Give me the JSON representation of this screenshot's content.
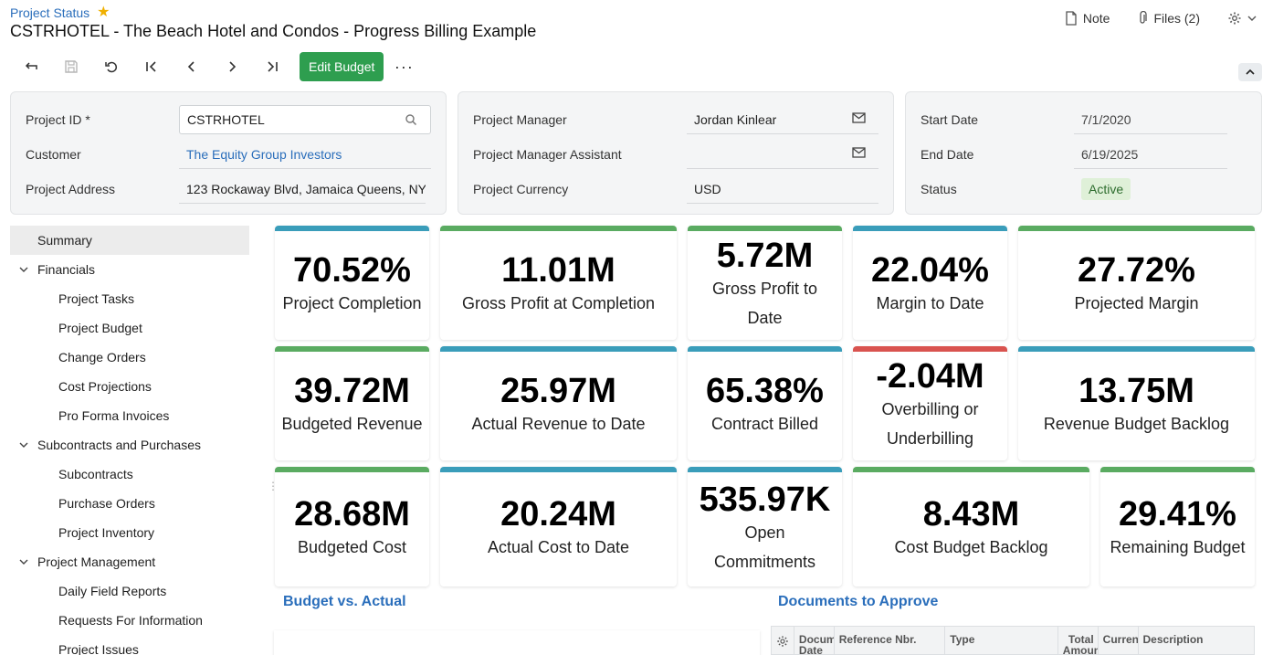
{
  "breadcrumb": "Project Status",
  "title": "CSTRHOTEL - The Beach Hotel and Condos - Progress Billing Example",
  "top_actions": {
    "note": "Note",
    "files": "Files (2)"
  },
  "toolbar": {
    "edit_budget": "Edit Budget",
    "more": "···"
  },
  "summary": {
    "project_id_label": "Project ID *",
    "project_id_value": "CSTRHOTEL",
    "customer_label": "Customer",
    "customer_value": "The Equity Group Investors",
    "address_label": "Project Address",
    "address_value": "123 Rockaway Blvd, Jamaica Queens, NY",
    "pm_label": "Project Manager",
    "pm_value": "Jordan Kinlear",
    "pma_label": "Project Manager Assistant",
    "pma_value": "",
    "currency_label": "Project Currency",
    "currency_value": "USD",
    "start_label": "Start Date",
    "start_value": "7/1/2020",
    "end_label": "End Date",
    "end_value": "6/19/2025",
    "status_label": "Status",
    "status_value": "Active"
  },
  "nav": {
    "summary": "Summary",
    "financials": "Financials",
    "project_tasks": "Project Tasks",
    "project_budget": "Project Budget",
    "change_orders": "Change Orders",
    "cost_projections": "Cost Projections",
    "pro_forma": "Pro Forma Invoices",
    "subcontracts_purchases": "Subcontracts and Purchases",
    "subcontracts": "Subcontracts",
    "purchase_orders": "Purchase Orders",
    "project_inventory": "Project Inventory",
    "project_management": "Project Management",
    "daily_field_reports": "Daily Field Reports",
    "rfi": "Requests For Information",
    "project_issues": "Project Issues"
  },
  "kpis": {
    "completion": {
      "value": "70.52%",
      "caption": "Project Completion"
    },
    "gross_profit_completion": {
      "value": "11.01M",
      "caption": "Gross Profit at Completion"
    },
    "gross_profit_date": {
      "value": "5.72M",
      "caption": "Gross Profit to Date"
    },
    "margin_date": {
      "value": "22.04%",
      "caption": "Margin to Date"
    },
    "projected_margin": {
      "value": "27.72%",
      "caption": "Projected Margin"
    },
    "budgeted_revenue": {
      "value": "39.72M",
      "caption": "Budgeted Revenue"
    },
    "actual_revenue": {
      "value": "25.97M",
      "caption": "Actual Revenue to Date"
    },
    "contract_billed": {
      "value": "65.38%",
      "caption": "Contract Billed"
    },
    "overbilling": {
      "value": "-2.04M",
      "caption": "Overbilling or Underbilling"
    },
    "revenue_backlog": {
      "value": "13.75M",
      "caption": "Revenue Budget Backlog"
    },
    "budgeted_cost": {
      "value": "28.68M",
      "caption": "Budgeted Cost"
    },
    "actual_cost": {
      "value": "20.24M",
      "caption": "Actual Cost to Date"
    },
    "open_commitments": {
      "value": "535.97K",
      "caption": "Open Commitments"
    },
    "cost_backlog": {
      "value": "8.43M",
      "caption": "Cost Budget Backlog"
    },
    "remaining_budget": {
      "value": "29.41%",
      "caption": "Remaining Budget"
    }
  },
  "colors": {
    "green": "#5aab61",
    "blue": "#3a9dba",
    "red": "#d9534f",
    "accent": "#2a6ebb",
    "button": "#2e9e4f"
  },
  "sections": {
    "budget_vs_actual": "Budget vs. Actual",
    "documents_to_approve": "Documents to Approve"
  },
  "documents_grid": {
    "columns": [
      "Document Date",
      "Reference Nbr.",
      "Type",
      "Total Amount",
      "Currency",
      "Description"
    ]
  },
  "icons": [
    "star-icon",
    "note-icon",
    "paperclip-icon",
    "gear-icon",
    "search-icon",
    "mail-icon",
    "chevron-down-icon"
  ]
}
